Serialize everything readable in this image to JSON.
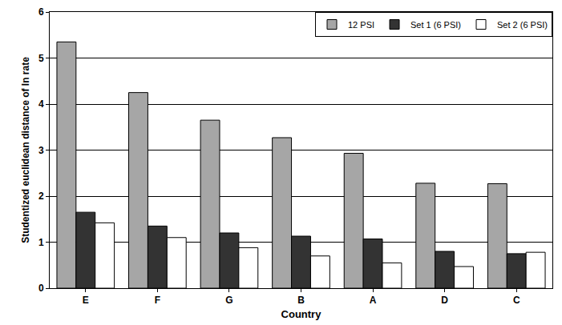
{
  "chart_data": {
    "type": "bar",
    "x_label": "Country",
    "y_label": "Studentized euclidean distance of ln rate",
    "categories": [
      "E",
      "F",
      "G",
      "B",
      "A",
      "D",
      "C"
    ],
    "series": [
      {
        "name": "12 PSI",
        "color": "#a6a6a6",
        "values": [
          5.35,
          4.25,
          3.65,
          3.27,
          2.93,
          2.28,
          2.27
        ]
      },
      {
        "name": "Set 1 (6 PSI)",
        "color": "#333333",
        "values": [
          1.65,
          1.35,
          1.2,
          1.13,
          1.07,
          0.8,
          0.75
        ]
      },
      {
        "name": "Set 2 (6 PSI)",
        "color": "#ffffff",
        "values": [
          1.42,
          1.1,
          0.88,
          0.7,
          0.55,
          0.47,
          0.78
        ]
      }
    ],
    "ylim": [
      0,
      6
    ],
    "yticks": [
      0,
      1,
      2,
      3,
      4,
      5,
      6
    ],
    "grid": true,
    "legend": "top-right"
  }
}
